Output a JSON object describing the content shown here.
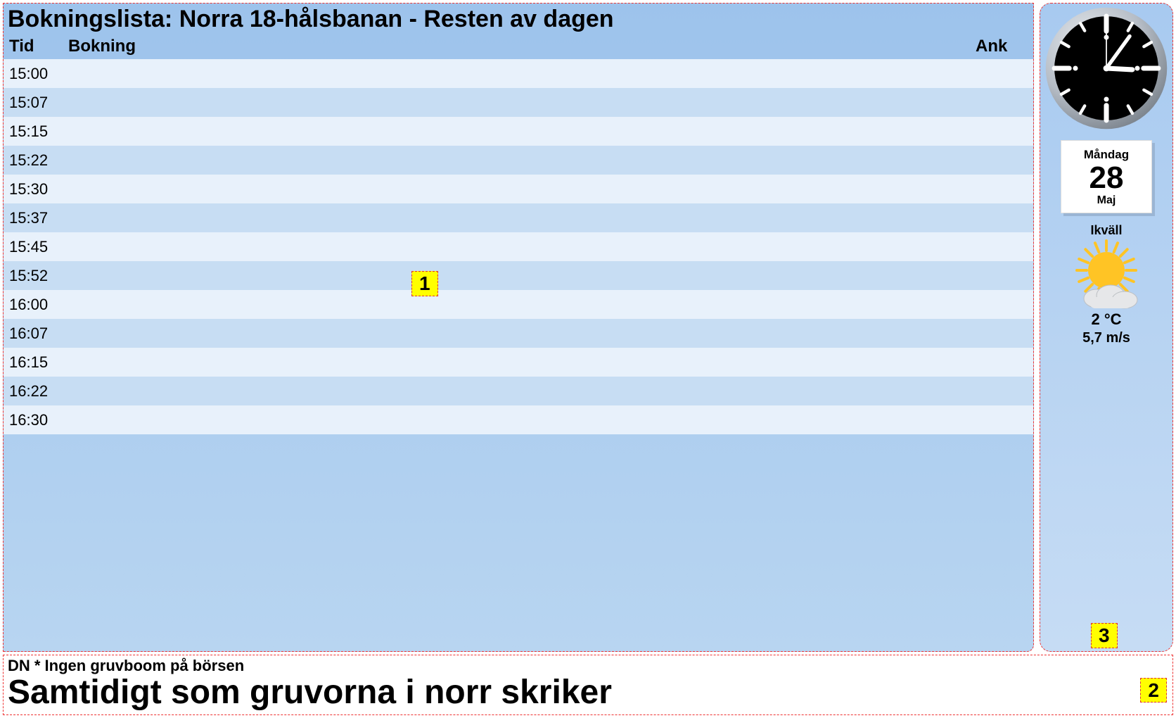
{
  "colors": {
    "panel_border": "#d94444",
    "row_even": "#e8f1fb",
    "row_odd": "#c7ddf3",
    "header_bg_top": "#9dc3ec",
    "marker_bg": "#ffff00"
  },
  "booking": {
    "title": "Bokningslista: Norra 18-hålsbanan - Resten av dagen",
    "columns": {
      "tid": "Tid",
      "bokning": "Bokning",
      "ank": "Ank"
    },
    "rows": [
      {
        "tid": "15:00",
        "bokning": "",
        "ank": ""
      },
      {
        "tid": "15:07",
        "bokning": "",
        "ank": ""
      },
      {
        "tid": "15:15",
        "bokning": "",
        "ank": ""
      },
      {
        "tid": "15:22",
        "bokning": "",
        "ank": ""
      },
      {
        "tid": "15:30",
        "bokning": "",
        "ank": ""
      },
      {
        "tid": "15:37",
        "bokning": "",
        "ank": ""
      },
      {
        "tid": "15:45",
        "bokning": "",
        "ank": ""
      },
      {
        "tid": "15:52",
        "bokning": "",
        "ank": ""
      },
      {
        "tid": "16:00",
        "bokning": "",
        "ank": ""
      },
      {
        "tid": "16:07",
        "bokning": "",
        "ank": ""
      },
      {
        "tid": "16:15",
        "bokning": "",
        "ank": ""
      },
      {
        "tid": "16:22",
        "bokning": "",
        "ank": ""
      },
      {
        "tid": "16:30",
        "bokning": "",
        "ank": ""
      }
    ]
  },
  "clock": {
    "hour": 3,
    "minute": 6,
    "second": 0,
    "face_color": "#000000",
    "ring_inner": "#c9cfd6",
    "ring_outer": "#8d949c",
    "tick_color": "#ffffff",
    "hand_color": "#ffffff",
    "second_color": "#ffffff"
  },
  "calendar": {
    "day_name": "Måndag",
    "day_num": "28",
    "month": "Maj"
  },
  "weather": {
    "title": "Ikväll",
    "icon": "partly-cloudy",
    "temperature": "2 °C",
    "wind": "5,7 m/s",
    "sun_color": "#ffc425",
    "cloud_color": "#e6e7e9"
  },
  "ticker": {
    "sub": "DN * Ingen gruvboom på börsen",
    "headline": "Samtidigt som gruvorna i norr skriker"
  },
  "markers": {
    "m1": "1",
    "m2": "2",
    "m3": "3"
  }
}
